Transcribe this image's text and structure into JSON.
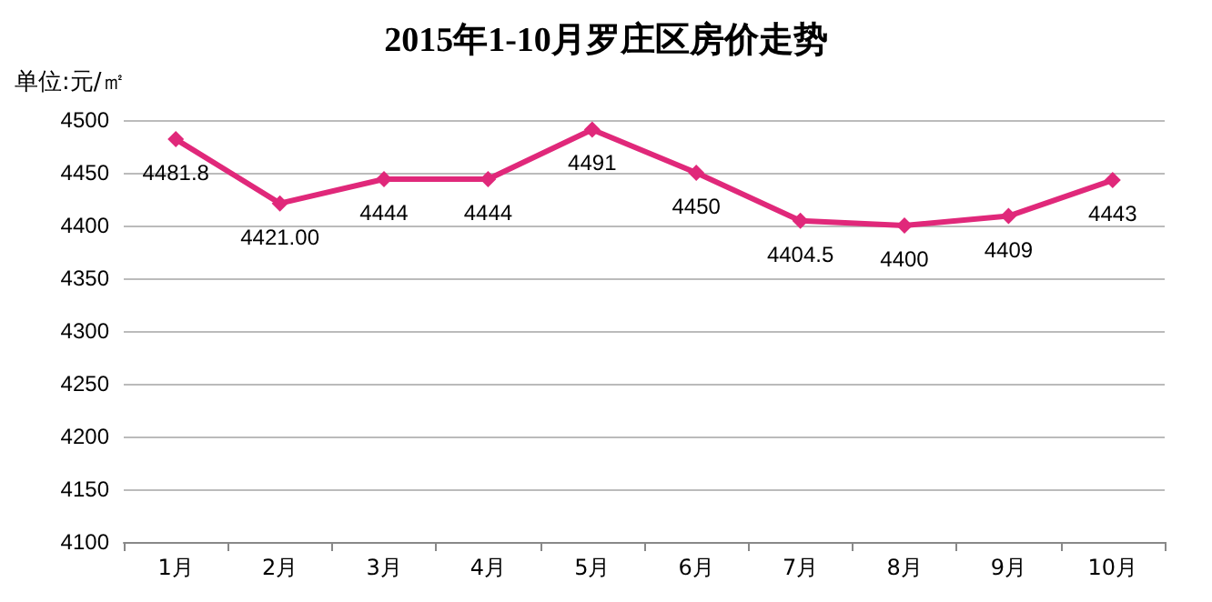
{
  "chart_data": {
    "type": "line",
    "title": "2015年1-10月罗庄区房价走势",
    "ylabel": "单位:元/㎡",
    "categories": [
      "1月",
      "2月",
      "3月",
      "4月",
      "5月",
      "6月",
      "7月",
      "8月",
      "9月",
      "10月"
    ],
    "series": [
      {
        "color": "#e0287a",
        "values": [
          4481.8,
          4421,
          4444,
          4444,
          4491,
          4450,
          4404.5,
          4400,
          4409,
          4443
        ],
        "value_labels": [
          "4481.8",
          "4421.00",
          "4444",
          "4444",
          "4491",
          "4450",
          "4404.5",
          "4400",
          "4409",
          "4443"
        ]
      }
    ],
    "ylim": [
      4100,
      4500
    ],
    "yticks": [
      4100,
      4150,
      4200,
      4250,
      4300,
      4350,
      4400,
      4450,
      4500
    ],
    "grid": "y",
    "marker": "diamond",
    "line_style": "solid"
  }
}
